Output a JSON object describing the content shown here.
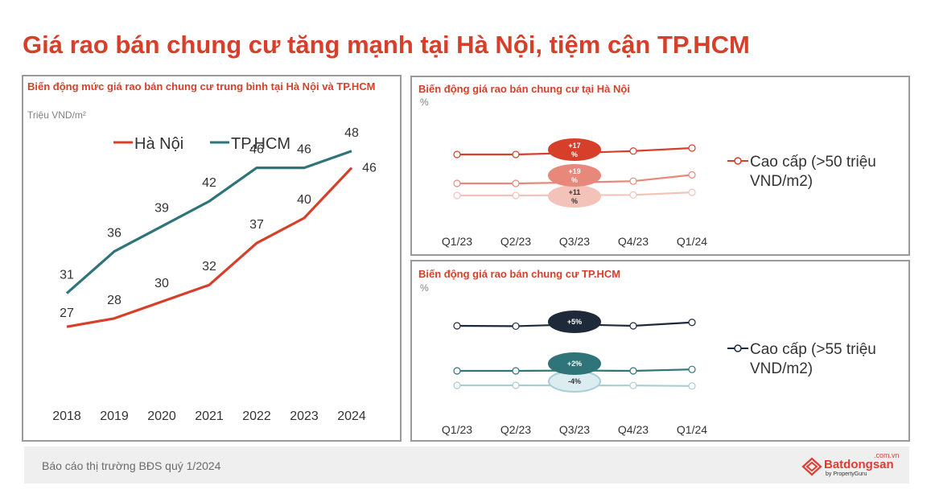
{
  "title": "Giá rao bán chung cư tăng mạnh tại Hà Nội, tiệm cận TP.HCM",
  "footer": {
    "text": "Báo cáo thị trường BĐS quý 1/2024",
    "logo_name": "Batdongsan",
    "logo_tld": ".com.vn",
    "logo_sub": "by PropertyGuru"
  },
  "chart_data": [
    {
      "type": "line",
      "title": "Biến động mức giá rao bán chung cư trung bình tại Hà Nội và TP.HCM",
      "unit": "Triệu VND/m²",
      "ylabel": "Triệu VND/m²",
      "xlabel": "",
      "categories": [
        "2018",
        "2019",
        "2020",
        "2021",
        "2022",
        "2023",
        "2024"
      ],
      "ylim": [
        20,
        55
      ],
      "legend": "top",
      "grid": false,
      "series": [
        {
          "name": "Hà Nội",
          "color": "#d6402b",
          "values": [
            27,
            28,
            30,
            32,
            37,
            40,
            46
          ]
        },
        {
          "name": "TP.HCM",
          "color": "#2e7478",
          "values": [
            31,
            36,
            39,
            42,
            46,
            46,
            48
          ]
        }
      ]
    },
    {
      "type": "line",
      "title": "Biến động giá rao bán chung cư tại Hà Nội",
      "unit": "%",
      "categories": [
        "Q1/23",
        "Q2/23",
        "Q3/23",
        "Q4/23",
        "Q1/24"
      ],
      "legend": "right",
      "grid": false,
      "series": [
        {
          "name": "Cao cấp (>50 triệu VND/m2)",
          "color": "#d6402b",
          "values": [
            100,
            100,
            104,
            109,
            117
          ],
          "change_label": "+17%"
        },
        {
          "name": "",
          "color": "#e8887a",
          "values": [
            100,
            100,
            102,
            105,
            119
          ],
          "change_label": "+19%"
        },
        {
          "name": "",
          "color": "#f3c3ba",
          "values": [
            100,
            100,
            101,
            102,
            111
          ],
          "change_label": "+11%"
        }
      ]
    },
    {
      "type": "line",
      "title": "Biến động giá rao bán chung cư TP.HCM",
      "unit": "%",
      "categories": [
        "Q1/23",
        "Q2/23",
        "Q3/23",
        "Q4/23",
        "Q1/24"
      ],
      "legend": "right",
      "grid": false,
      "series": [
        {
          "name": "Cao cấp (>55 triệu VND/m2)",
          "color": "#1e2a3a",
          "values": [
            100,
            99.5,
            102,
            100,
            105
          ],
          "change_label": "+5%"
        },
        {
          "name": "",
          "color": "#2e7478",
          "values": [
            100,
            100,
            100.5,
            100,
            102
          ],
          "change_label": "+2%"
        },
        {
          "name": "",
          "color": "#a9cdd6",
          "values": [
            100,
            100,
            99.5,
            99,
            96
          ],
          "change_label": "-4%"
        }
      ]
    }
  ]
}
